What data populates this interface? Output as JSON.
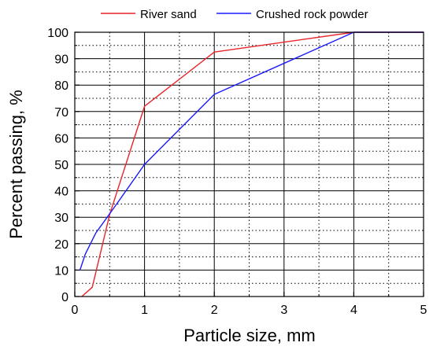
{
  "chart_data": {
    "type": "line",
    "xlabel": "Particle size, mm",
    "ylabel": "Percent passing, %",
    "xlim": [
      0,
      5
    ],
    "ylim": [
      0,
      100
    ],
    "x_ticks": [
      "0",
      "1",
      "2",
      "3",
      "4",
      "5"
    ],
    "y_ticks": [
      "0",
      "10",
      "20",
      "30",
      "40",
      "50",
      "60",
      "70",
      "80",
      "90",
      "100"
    ],
    "grid": "major solid, minor dotted",
    "legend_position": "top",
    "series": [
      {
        "name": "River sand",
        "color": "#e8252a",
        "points": [
          [
            0.1,
            0
          ],
          [
            0.25,
            3.5
          ],
          [
            0.5,
            31
          ],
          [
            1,
            72
          ],
          [
            2,
            92.5
          ],
          [
            4,
            100
          ],
          [
            5,
            100
          ]
        ]
      },
      {
        "name": "Crushed rock powder",
        "color": "#1a1aff",
        "points": [
          [
            0.075,
            10
          ],
          [
            0.15,
            16
          ],
          [
            0.3,
            24
          ],
          [
            0.6,
            35
          ],
          [
            1,
            50
          ],
          [
            2,
            76.5
          ],
          [
            4,
            100
          ],
          [
            5,
            100
          ]
        ]
      }
    ]
  }
}
